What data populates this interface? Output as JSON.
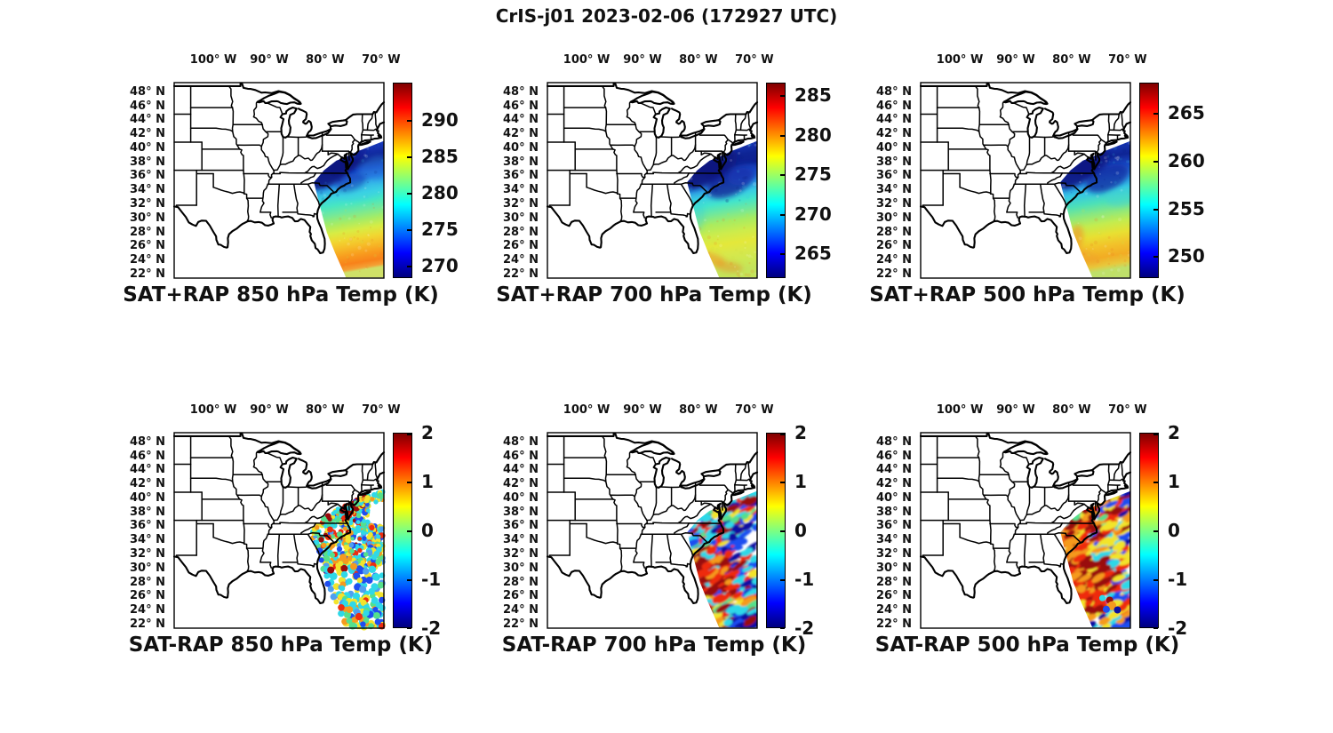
{
  "figure": {
    "title": "CrIS-j01 2023-02-06 (172927 UTC)",
    "background": "#ffffff",
    "colormap": "jet",
    "colormap_stops": [
      "#00007f",
      "#0000ff",
      "#00ffff",
      "#ffff00",
      "#ff0000",
      "#7f0000"
    ]
  },
  "axes": {
    "lon_labels": [
      "100° W",
      "90° W",
      "80° W",
      "70° W"
    ],
    "lon_values_deg_west": [
      100,
      90,
      80,
      70
    ],
    "lat_labels": [
      "48° N",
      "46° N",
      "44° N",
      "42° N",
      "40° N",
      "38° N",
      "36° N",
      "34° N",
      "32° N",
      "30° N",
      "28° N",
      "26° N",
      "24° N",
      "22° N"
    ],
    "lat_values_deg_north": [
      48,
      46,
      44,
      42,
      40,
      38,
      36,
      34,
      32,
      30,
      28,
      26,
      24,
      22
    ],
    "map_extent": {
      "lon_deg_west": [
        107,
        69.5
      ],
      "lat_deg_north": [
        21.6,
        49.5
      ]
    }
  },
  "panels": [
    {
      "title": "SAT+RAP 850 hPa Temp (K)",
      "row": 0,
      "col": 0,
      "colorbar": {
        "vmin": 268.3,
        "vmax": 295.1,
        "ticks": [
          270,
          275,
          280,
          285,
          290
        ],
        "units": "K"
      }
    },
    {
      "title": "SAT+RAP 700 hPa Temp (K)",
      "row": 0,
      "col": 1,
      "colorbar": {
        "vmin": 261.9,
        "vmax": 286.6,
        "ticks": [
          265,
          270,
          275,
          280,
          285
        ],
        "units": "K"
      }
    },
    {
      "title": "SAT+RAP 500 hPa Temp (K)",
      "row": 0,
      "col": 2,
      "colorbar": {
        "vmin": 247.7,
        "vmax": 268.2,
        "ticks": [
          250,
          255,
          260,
          265
        ],
        "units": "K"
      }
    },
    {
      "title": "SAT-RAP 850 hPa Temp (K)",
      "row": 1,
      "col": 0,
      "colorbar": {
        "vmin": -2,
        "vmax": 2,
        "ticks": [
          -2,
          -1,
          0,
          1,
          2
        ],
        "units": "K"
      }
    },
    {
      "title": "SAT-RAP 700 hPa Temp (K)",
      "row": 1,
      "col": 1,
      "colorbar": {
        "vmin": -2,
        "vmax": 2,
        "ticks": [
          -2,
          -1,
          0,
          1,
          2
        ],
        "units": "K"
      }
    },
    {
      "title": "SAT-RAP 500 hPa Temp (K)",
      "row": 1,
      "col": 2,
      "colorbar": {
        "vmin": -2,
        "vmax": 2,
        "ticks": [
          -2,
          -1,
          0,
          1,
          2
        ],
        "units": "K"
      }
    }
  ],
  "chart_data": [
    {
      "type": "heatmap",
      "subtype": "satellite-swath-map",
      "title": "SAT+RAP 850 hPa Temp (K)",
      "units": "K",
      "colormap": "jet",
      "colorbar_range": [
        268.3,
        295.1
      ],
      "colorbar_ticks": [
        270,
        275,
        280,
        285,
        290
      ],
      "x": {
        "label": "longitude",
        "ticks_deg_west": [
          100,
          90,
          80,
          70
        ],
        "range_deg_west": [
          107,
          69.5
        ]
      },
      "y": {
        "label": "latitude",
        "ticks_deg_north": [
          48,
          46,
          44,
          42,
          40,
          38,
          36,
          34,
          32,
          30,
          28,
          26,
          24,
          22
        ],
        "range_deg_north": [
          21.6,
          49.5
        ]
      },
      "swath_lat_profile_K": [
        {
          "lat_n": 40,
          "K": 271
        },
        {
          "lat_n": 38,
          "K": 269
        },
        {
          "lat_n": 36,
          "K": 271
        },
        {
          "lat_n": 34,
          "K": 274
        },
        {
          "lat_n": 32,
          "K": 277
        },
        {
          "lat_n": 30,
          "K": 279
        },
        {
          "lat_n": 28,
          "K": 281
        },
        {
          "lat_n": 26,
          "K": 284
        },
        {
          "lat_n": 24,
          "K": 286
        },
        {
          "lat_n": 22,
          "K": 287
        }
      ],
      "features": [
        "cold pool ~269-271 K over Mid-Atlantic coast 36-40N",
        "warm 285-288 K south of 25N"
      ]
    },
    {
      "type": "heatmap",
      "subtype": "satellite-swath-map",
      "title": "SAT+RAP 700 hPa Temp (K)",
      "units": "K",
      "colormap": "jet",
      "colorbar_range": [
        261.9,
        286.6
      ],
      "colorbar_ticks": [
        265,
        270,
        275,
        280,
        285
      ],
      "x": {
        "label": "longitude",
        "ticks_deg_west": [
          100,
          90,
          80,
          70
        ],
        "range_deg_west": [
          107,
          69.5
        ]
      },
      "y": {
        "label": "latitude",
        "ticks_deg_north": [
          48,
          46,
          44,
          42,
          40,
          38,
          36,
          34,
          32,
          30,
          28,
          26,
          24,
          22
        ],
        "range_deg_north": [
          21.6,
          49.5
        ]
      },
      "swath_lat_profile_K": [
        {
          "lat_n": 40,
          "K": 266
        },
        {
          "lat_n": 38,
          "K": 264
        },
        {
          "lat_n": 36,
          "K": 265
        },
        {
          "lat_n": 34,
          "K": 268
        },
        {
          "lat_n": 32,
          "K": 270
        },
        {
          "lat_n": 30,
          "K": 272
        },
        {
          "lat_n": 28,
          "K": 274
        },
        {
          "lat_n": 26,
          "K": 275
        },
        {
          "lat_n": 24,
          "K": 276
        },
        {
          "lat_n": 22,
          "K": 276
        }
      ],
      "features": [
        "cold core ~263-265 K 34-40N near coast",
        "276-278 K with orange streaks south of 26N"
      ]
    },
    {
      "type": "heatmap",
      "subtype": "satellite-swath-map",
      "title": "SAT+RAP 500 hPa Temp (K)",
      "units": "K",
      "colormap": "jet",
      "colorbar_range": [
        247.7,
        268.2
      ],
      "colorbar_ticks": [
        250,
        255,
        260,
        265
      ],
      "x": {
        "label": "longitude",
        "ticks_deg_west": [
          100,
          90,
          80,
          70
        ],
        "range_deg_west": [
          107,
          69.5
        ]
      },
      "y": {
        "label": "latitude",
        "ticks_deg_north": [
          48,
          46,
          44,
          42,
          40,
          38,
          36,
          34,
          32,
          30,
          28,
          26,
          24,
          22
        ],
        "range_deg_north": [
          21.6,
          49.5
        ]
      },
      "swath_lat_profile_K": [
        {
          "lat_n": 40,
          "K": 251
        },
        {
          "lat_n": 38,
          "K": 250
        },
        {
          "lat_n": 36,
          "K": 252
        },
        {
          "lat_n": 34,
          "K": 255
        },
        {
          "lat_n": 32,
          "K": 257
        },
        {
          "lat_n": 30,
          "K": 259
        },
        {
          "lat_n": 28,
          "K": 260
        },
        {
          "lat_n": 26,
          "K": 261
        },
        {
          "lat_n": 24,
          "K": 261
        },
        {
          "lat_n": 22,
          "K": 260
        }
      ],
      "features": [
        "cold ~249-252 K north of 36N",
        "yellow-orange 260-262 K band 24-30N"
      ]
    },
    {
      "type": "scatter",
      "subtype": "difference-map",
      "title": "SAT-RAP 850 hPa Temp (K)",
      "units": "K",
      "colormap": "jet",
      "colorbar_range": [
        -2,
        2
      ],
      "colorbar_ticks": [
        -2,
        -1,
        0,
        1,
        2
      ],
      "x": {
        "label": "longitude",
        "ticks_deg_west": [
          100,
          90,
          80,
          70
        ],
        "range_deg_west": [
          107,
          69.5
        ]
      },
      "y": {
        "label": "latitude",
        "ticks_deg_north": [
          48,
          46,
          44,
          42,
          40,
          38,
          36,
          34,
          32,
          30,
          28,
          26,
          24,
          22
        ],
        "range_deg_north": [
          21.6,
          49.5
        ]
      },
      "difference_summary": [
        {
          "region": "NJ-Delmarva coast 36-40N",
          "diff_K": 2
        },
        {
          "region": "inland VA-NC lobe 34-38N",
          "diff_K": 0
        },
        {
          "region": "offshore 30-34N",
          "diff_K": 0.3
        },
        {
          "region": "ocean 24-30N sparse points",
          "diff_K": -0.8
        },
        {
          "region": "22-25N cluster",
          "diff_K": -0.5
        }
      ]
    },
    {
      "type": "scatter",
      "subtype": "difference-map",
      "title": "SAT-RAP 700 hPa Temp (K)",
      "units": "K",
      "colormap": "jet",
      "colorbar_range": [
        -2,
        2
      ],
      "colorbar_ticks": [
        -2,
        -1,
        0,
        1,
        2
      ],
      "x": {
        "label": "longitude",
        "ticks_deg_west": [
          100,
          90,
          80,
          70
        ],
        "range_deg_west": [
          107,
          69.5
        ]
      },
      "y": {
        "label": "latitude",
        "ticks_deg_north": [
          48,
          46,
          44,
          42,
          40,
          38,
          36,
          34,
          32,
          30,
          28,
          26,
          24,
          22
        ],
        "range_deg_north": [
          21.6,
          49.5
        ]
      },
      "difference_summary": [
        {
          "region": "27-32N west of 73.5W",
          "diff_K": 2
        },
        {
          "region": "offshore 32-37N",
          "diff_K": -1.8
        },
        {
          "region": "coastal mottle 35-38N",
          "diff_K": 0
        },
        {
          "region": "22-24.5N east part",
          "diff_K": -2
        },
        {
          "region": "22-24.5N west part",
          "diff_K": 1.5
        }
      ]
    },
    {
      "type": "scatter",
      "subtype": "difference-map",
      "title": "SAT-RAP 500 hPa Temp (K)",
      "units": "K",
      "colormap": "jet",
      "colorbar_range": [
        -2,
        2
      ],
      "colorbar_ticks": [
        -2,
        -1,
        0,
        1,
        2
      ],
      "x": {
        "label": "longitude",
        "ticks_deg_west": [
          100,
          90,
          80,
          70
        ],
        "range_deg_west": [
          107,
          69.5
        ]
      },
      "y": {
        "label": "latitude",
        "ticks_deg_north": [
          48,
          46,
          44,
          42,
          40,
          38,
          36,
          34,
          32,
          30,
          28,
          26,
          24,
          22
        ],
        "range_deg_north": [
          21.6,
          49.5
        ]
      },
      "difference_summary": [
        {
          "region": "24-32N main swath",
          "diff_K": 1.8
        },
        {
          "region": "coastal 32-37N",
          "diff_K": 1
        },
        {
          "region": "cyan-blue patches offshore 32-36N",
          "diff_K": -0.8
        },
        {
          "region": "22-24N scattered dots",
          "diff_K": -1
        },
        {
          "region": "NJ coast 38-40N",
          "diff_K": 2
        }
      ]
    }
  ]
}
